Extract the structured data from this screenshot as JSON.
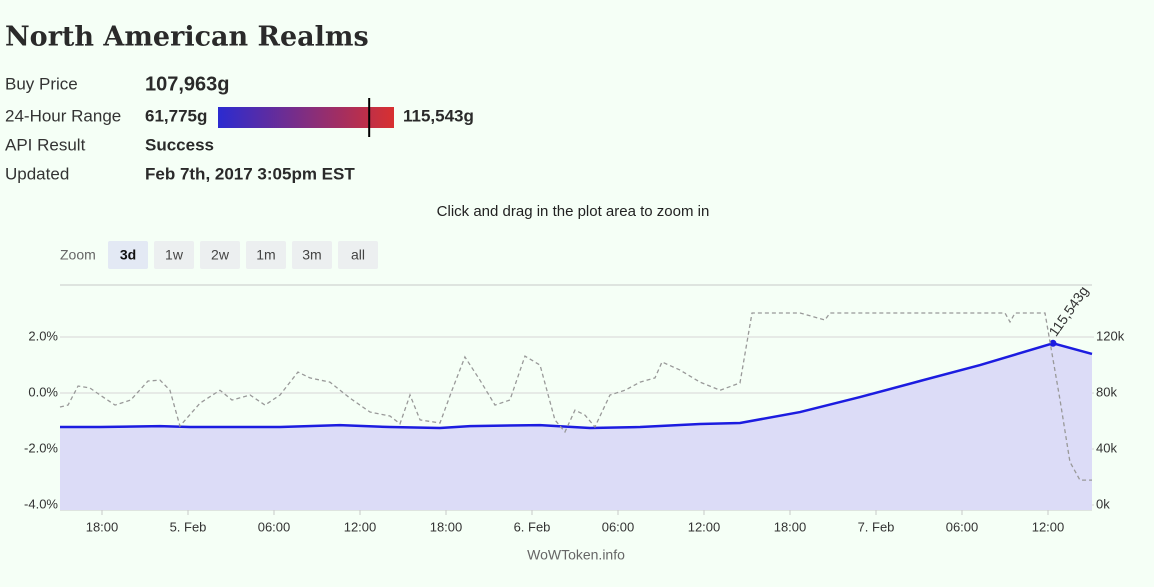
{
  "header": {
    "title": "North American Realms",
    "rows": [
      {
        "label": "Buy Price",
        "value": "107,963g"
      },
      {
        "label": "24-Hour Range"
      },
      {
        "label": "API Result",
        "value": "Success"
      },
      {
        "label": "Updated",
        "value": "Feb 7th, 2017 3:05pm EST"
      }
    ],
    "range": {
      "low": {
        "value": 61775,
        "label": "61,775g"
      },
      "high": {
        "value": 115543,
        "label": "115,543g"
      },
      "current": 107963,
      "low_color": "#2b2bd0",
      "high_color": "#d83030",
      "marker_color": "#000000"
    }
  },
  "hint": "Click and drag in the plot area to zoom in",
  "zoom": {
    "label": "Zoom",
    "buttons": [
      "3d",
      "1w",
      "2w",
      "1m",
      "3m",
      "all"
    ],
    "selected": 0
  },
  "credits": "WoWToken.info",
  "chart_data": {
    "type": "line",
    "xlim": [
      15.07,
      87.07
    ],
    "xticks": [
      {
        "value": 18,
        "label": "18:00"
      },
      {
        "value": 24,
        "label": "5. Feb"
      },
      {
        "value": 30,
        "label": "06:00"
      },
      {
        "value": 36,
        "label": "12:00"
      },
      {
        "value": 42,
        "label": "18:00"
      },
      {
        "value": 48,
        "label": "6. Feb"
      },
      {
        "value": 54,
        "label": "06:00"
      },
      {
        "value": 60,
        "label": "12:00"
      },
      {
        "value": 66,
        "label": "18:00"
      },
      {
        "value": 72,
        "label": "7. Feb"
      },
      {
        "value": 78,
        "label": "06:00"
      },
      {
        "value": 84,
        "label": "12:00"
      }
    ],
    "ylim": [
      -4,
      3.86
    ],
    "yticks": [
      {
        "value": -4,
        "label": "-4.0%"
      },
      {
        "value": -2,
        "label": "-2.0%"
      },
      {
        "value": 0,
        "label": "0.0%"
      },
      {
        "value": 2,
        "label": "2.0%"
      }
    ],
    "y2lim": [
      0,
      157200
    ],
    "y2ticks": [
      {
        "value": 0,
        "label": "0k"
      },
      {
        "value": 40000,
        "label": "40k"
      },
      {
        "value": 80000,
        "label": "80k"
      },
      {
        "value": 120000,
        "label": "120k"
      }
    ],
    "grid": true,
    "series": [
      {
        "axis": "y2",
        "color": "#1c1ce0",
        "area_color": "#dcdcf7",
        "dashed": false,
        "x": [
          15.07,
          17.86,
          22.05,
          24.14,
          30.42,
          34.6,
          38.09,
          41.58,
          43.67,
          48.56,
          52.05,
          55.54,
          59.72,
          62.51,
          66.7,
          70.88,
          75.07,
          79.26,
          84.35,
          87.07
        ],
        "values": [
          55700,
          55700,
          56400,
          55700,
          55700,
          57100,
          55700,
          55000,
          56400,
          57100,
          55000,
          55700,
          57900,
          58600,
          66400,
          77100,
          88600,
          100000,
          115543,
          107963
        ],
        "value_labels": [
          null,
          null,
          null,
          null,
          null,
          null,
          null,
          null,
          null,
          null,
          null,
          null,
          null,
          null,
          null,
          null,
          null,
          null,
          "115,543g",
          null
        ]
      },
      {
        "axis": "y",
        "color": "#999999",
        "dashed": true,
        "x": [
          15.07,
          15.63,
          16.33,
          17.16,
          17.86,
          18.91,
          20.0,
          21.21,
          22.05,
          22.74,
          23.44,
          24.84,
          26.23,
          27.07,
          28.33,
          29.37,
          30.42,
          31.67,
          32.51,
          33.9,
          35.3,
          36.7,
          38.09,
          38.79,
          39.49,
          40.19,
          41.58,
          42.42,
          43.32,
          44.37,
          45.42,
          46.46,
          47.51,
          48.56,
          49.6,
          50.3,
          51.0,
          51.7,
          52.39,
          53.44,
          54.49,
          55.54,
          56.58,
          57.07,
          58.33,
          59.72,
          61.12,
          62.51,
          63.35,
          66.7,
          68.44,
          68.79,
          81.0,
          81.35,
          81.7,
          83.79,
          84.84,
          85.53,
          86.23,
          87.07
        ],
        "values": [
          -0.5,
          -0.43,
          0.25,
          0.18,
          -0.07,
          -0.43,
          -0.25,
          0.43,
          0.46,
          0.1,
          -1.18,
          -0.36,
          0.1,
          -0.25,
          -0.07,
          -0.43,
          -0.07,
          0.75,
          0.54,
          0.39,
          -0.18,
          -0.68,
          -0.82,
          -1.1,
          -0.07,
          -0.96,
          -1.07,
          0.1,
          1.29,
          0.46,
          -0.43,
          -0.25,
          1.32,
          1.0,
          -0.96,
          -1.39,
          -0.61,
          -0.79,
          -1.21,
          -0.07,
          0.1,
          0.39,
          0.54,
          1.11,
          0.82,
          0.39,
          0.1,
          0.36,
          2.86,
          2.86,
          2.61,
          2.86,
          2.86,
          2.54,
          2.86,
          2.86,
          -0.25,
          -2.46,
          -3.11,
          -3.11
        ]
      }
    ]
  }
}
